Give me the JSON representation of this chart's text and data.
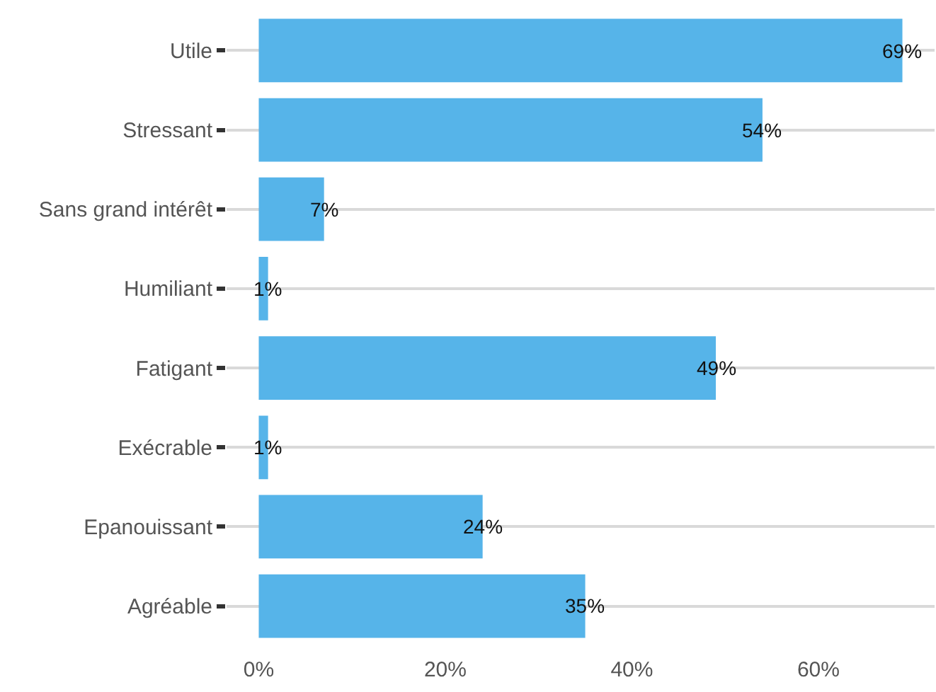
{
  "chart_data": {
    "type": "bar",
    "orientation": "horizontal",
    "categories": [
      "Utile",
      "Stressant",
      "Sans grand intérêt",
      "Humiliant",
      "Fatigant",
      "Exécrable",
      "Epanouissant",
      "Agréable"
    ],
    "values": [
      69,
      54,
      7,
      1,
      49,
      1,
      24,
      35
    ],
    "value_labels": [
      "69%",
      "54%",
      "7%",
      "1%",
      "49%",
      "1%",
      "24%",
      "35%"
    ],
    "color": "#56b4e9",
    "xlim": [
      -3.45,
      72.45
    ],
    "xticks": [
      {
        "value": 0,
        "label": "0%"
      },
      {
        "value": 20,
        "label": "20%"
      },
      {
        "value": 40,
        "label": "40%"
      },
      {
        "value": 60,
        "label": "60%"
      }
    ],
    "grid": "y",
    "legend": false
  }
}
